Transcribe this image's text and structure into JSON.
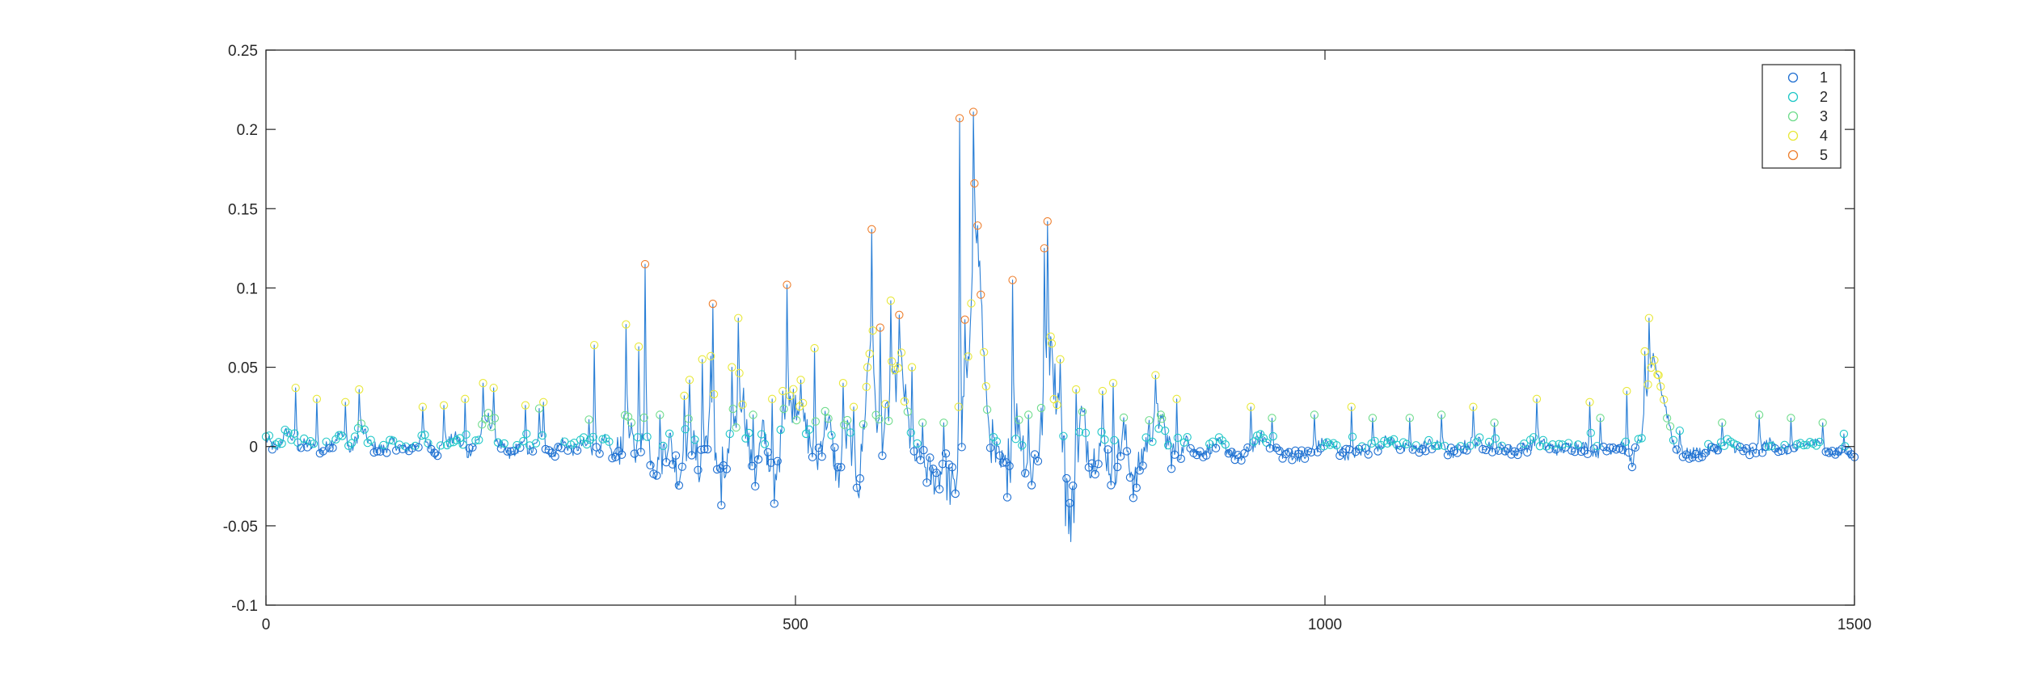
{
  "chart_data": {
    "type": "line",
    "title": "",
    "xlabel": "",
    "ylabel": "",
    "xlim": [
      0,
      1500
    ],
    "ylim": [
      -0.1,
      0.25
    ],
    "xticks": [
      0,
      500,
      1000,
      1500
    ],
    "xtick_labels": [
      "0",
      "500",
      "1000",
      "1500"
    ],
    "yticks": [
      -0.1,
      -0.05,
      0,
      0.05,
      0.1,
      0.15,
      0.2,
      0.25
    ],
    "ytick_labels": [
      "-0.1",
      "-0.05",
      "0",
      "0.05",
      "0.1",
      "0.15",
      "0.2",
      "0.25"
    ],
    "grid": false,
    "legend_position": "top-right",
    "colors": {
      "line": "#2a7fd6",
      "class_1": "#1f6fd1",
      "class_2": "#1fc7c7",
      "class_3": "#6fdc8c",
      "class_4": "#e8e83a",
      "class_5": "#ee7f2e"
    },
    "legend": [
      {
        "label": "1",
        "color": "#1f6fd1"
      },
      {
        "label": "2",
        "color": "#1fc7c7"
      },
      {
        "label": "3",
        "color": "#6fdc8c"
      },
      {
        "label": "4",
        "color": "#e8e83a"
      },
      {
        "label": "5",
        "color": "#ee7f2e"
      }
    ],
    "keypoints": [
      [
        0,
        0.005
      ],
      [
        10,
        -0.002
      ],
      [
        20,
        0.01
      ],
      [
        30,
        0.0
      ],
      [
        40,
        0.002
      ],
      [
        50,
        -0.004
      ],
      [
        60,
        0.001
      ],
      [
        70,
        0.008
      ],
      [
        80,
        -0.003
      ],
      [
        90,
        0.012
      ],
      [
        100,
        0.0
      ],
      [
        110,
        -0.002
      ],
      [
        120,
        0.003
      ],
      [
        130,
        -0.002
      ],
      [
        140,
        0.001
      ],
      [
        150,
        0.005
      ],
      [
        160,
        -0.004
      ],
      [
        170,
        0.002
      ],
      [
        180,
        0.006
      ],
      [
        190,
        -0.005
      ],
      [
        200,
        0.004
      ],
      [
        210,
        0.018
      ],
      [
        220,
        0.002
      ],
      [
        230,
        -0.006
      ],
      [
        240,
        0.001
      ],
      [
        250,
        -0.003
      ],
      [
        260,
        0.004
      ],
      [
        270,
        -0.005
      ],
      [
        280,
        0.003
      ],
      [
        290,
        -0.002
      ],
      [
        300,
        0.002
      ],
      [
        310,
        -0.005
      ],
      [
        320,
        0.004
      ],
      [
        330,
        -0.008
      ],
      [
        340,
        0.012
      ],
      [
        350,
        -0.005
      ],
      [
        360,
        0.004
      ],
      [
        370,
        -0.015
      ],
      [
        380,
        0.006
      ],
      [
        390,
        -0.02
      ],
      [
        400,
        0.01
      ],
      [
        410,
        -0.015
      ],
      [
        420,
        0.02
      ],
      [
        430,
        -0.03
      ],
      [
        440,
        0.005
      ],
      [
        450,
        0.035
      ],
      [
        460,
        -0.025
      ],
      [
        470,
        0.01
      ],
      [
        480,
        -0.03
      ],
      [
        490,
        0.02
      ],
      [
        500,
        0.03
      ],
      [
        510,
        0.01
      ],
      [
        520,
        -0.01
      ],
      [
        530,
        0.02
      ],
      [
        540,
        -0.02
      ],
      [
        550,
        0.01
      ],
      [
        560,
        -0.025
      ],
      [
        570,
        0.06
      ],
      [
        580,
        0.0
      ],
      [
        590,
        0.03
      ],
      [
        600,
        0.05
      ],
      [
        610,
        -0.005
      ],
      [
        620,
        -0.01
      ],
      [
        630,
        -0.02
      ],
      [
        640,
        -0.015
      ],
      [
        650,
        -0.03
      ],
      [
        660,
        0.03
      ],
      [
        665,
        0.06
      ],
      [
        670,
        0.15
      ],
      [
        675,
        0.1
      ],
      [
        680,
        0.02
      ],
      [
        690,
        -0.01
      ],
      [
        700,
        -0.02
      ],
      [
        710,
        0.02
      ],
      [
        720,
        -0.02
      ],
      [
        730,
        0.0
      ],
      [
        740,
        0.06
      ],
      [
        750,
        0.02
      ],
      [
        760,
        -0.045
      ],
      [
        770,
        0.02
      ],
      [
        780,
        -0.01
      ],
      [
        790,
        0.005
      ],
      [
        800,
        -0.02
      ],
      [
        810,
        0.01
      ],
      [
        820,
        -0.025
      ],
      [
        830,
        0.0
      ],
      [
        840,
        0.02
      ],
      [
        850,
        0.005
      ],
      [
        860,
        -0.01
      ],
      [
        870,
        0.005
      ],
      [
        880,
        -0.005
      ],
      [
        900,
        0.002
      ],
      [
        920,
        -0.008
      ],
      [
        940,
        0.006
      ],
      [
        960,
        -0.004
      ],
      [
        980,
        -0.006
      ],
      [
        1000,
        0.003
      ],
      [
        1020,
        -0.005
      ],
      [
        1040,
        -0.002
      ],
      [
        1060,
        0.004
      ],
      [
        1080,
        -0.003
      ],
      [
        1100,
        0.002
      ],
      [
        1120,
        -0.004
      ],
      [
        1140,
        0.003
      ],
      [
        1160,
        0.0
      ],
      [
        1180,
        -0.003
      ],
      [
        1200,
        0.003
      ],
      [
        1220,
        -0.002
      ],
      [
        1240,
        0.001
      ],
      [
        1260,
        -0.004
      ],
      [
        1280,
        0.002
      ],
      [
        1290,
        -0.01
      ],
      [
        1300,
        0.01
      ],
      [
        1310,
        0.055
      ],
      [
        1320,
        0.03
      ],
      [
        1330,
        0.0
      ],
      [
        1340,
        -0.005
      ],
      [
        1360,
        -0.003
      ],
      [
        1380,
        0.002
      ],
      [
        1400,
        -0.004
      ],
      [
        1420,
        0.002
      ],
      [
        1440,
        -0.003
      ],
      [
        1460,
        0.003
      ],
      [
        1480,
        -0.004
      ],
      [
        1500,
        -0.004
      ]
    ],
    "peaks": [
      [
        28,
        0.037
      ],
      [
        48,
        0.03
      ],
      [
        75,
        0.028
      ],
      [
        88,
        0.036
      ],
      [
        148,
        0.025
      ],
      [
        168,
        0.026
      ],
      [
        188,
        0.03
      ],
      [
        205,
        0.04
      ],
      [
        215,
        0.037
      ],
      [
        245,
        0.026
      ],
      [
        262,
        0.028
      ],
      [
        258,
        0.024
      ],
      [
        305,
        0.017
      ],
      [
        310,
        0.064
      ],
      [
        340,
        0.077
      ],
      [
        352,
        0.063
      ],
      [
        358,
        0.115
      ],
      [
        372,
        0.02
      ],
      [
        395,
        0.032
      ],
      [
        400,
        0.042
      ],
      [
        412,
        0.055
      ],
      [
        420,
        0.057
      ],
      [
        422,
        0.09
      ],
      [
        430,
        0.045
      ],
      [
        440,
        0.05
      ],
      [
        446,
        0.081
      ],
      [
        460,
        0.02
      ],
      [
        478,
        0.03
      ],
      [
        488,
        0.035
      ],
      [
        492,
        0.102
      ],
      [
        505,
        0.042
      ],
      [
        518,
        0.062
      ],
      [
        545,
        0.04
      ],
      [
        555,
        0.025
      ],
      [
        568,
        0.05
      ],
      [
        572,
        0.137
      ],
      [
        580,
        0.075
      ],
      [
        590,
        0.092
      ],
      [
        598,
        0.083
      ],
      [
        610,
        0.05
      ],
      [
        620,
        0.015
      ],
      [
        640,
        0.015
      ],
      [
        655,
        0.207
      ],
      [
        660,
        0.08
      ],
      [
        668,
        0.211
      ],
      [
        680,
        0.038
      ],
      [
        700,
        0.04
      ],
      [
        705,
        0.105
      ],
      [
        720,
        0.02
      ],
      [
        735,
        0.125
      ],
      [
        738,
        0.142
      ],
      [
        742,
        0.065
      ],
      [
        750,
        0.055
      ],
      [
        765,
        0.036
      ],
      [
        790,
        0.035
      ],
      [
        800,
        0.04
      ],
      [
        840,
        0.045
      ],
      [
        845,
        0.02
      ],
      [
        860,
        0.03
      ],
      [
        930,
        0.025
      ],
      [
        950,
        0.018
      ],
      [
        990,
        0.02
      ],
      [
        1025,
        0.025
      ],
      [
        1045,
        0.018
      ],
      [
        1080,
        0.018
      ],
      [
        1110,
        0.02
      ],
      [
        1140,
        0.025
      ],
      [
        1160,
        0.015
      ],
      [
        1200,
        0.03
      ],
      [
        1250,
        0.028
      ],
      [
        1260,
        0.018
      ],
      [
        1285,
        0.035
      ],
      [
        1302,
        0.06
      ],
      [
        1306,
        0.081
      ],
      [
        1315,
        0.045
      ],
      [
        1335,
        0.01
      ],
      [
        1375,
        0.015
      ],
      [
        1410,
        0.02
      ],
      [
        1440,
        0.018
      ],
      [
        1470,
        0.015
      ],
      [
        1490,
        0.008
      ]
    ]
  }
}
